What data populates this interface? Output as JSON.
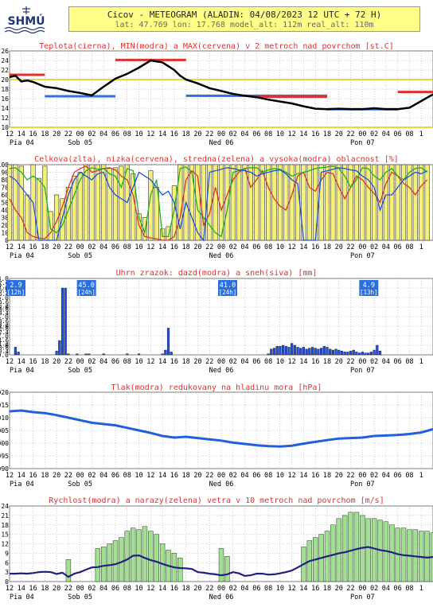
{
  "header": {
    "logo_text": "SHMÚ",
    "title": "Cicov - METEOGRAM (ALADIN: 04/08/2023 12 UTC + 72 H)",
    "subtitle": "lat: 47.769   lon: 17.768   model_alt: 112m   real_alt: 110m"
  },
  "time_axis": {
    "hour_labels": [
      "12",
      "14",
      "16",
      "18",
      "20",
      "22",
      "00",
      "02",
      "04",
      "06",
      "08",
      "10",
      "12",
      "14",
      "16",
      "18",
      "20",
      "22",
      "00",
      "02",
      "04",
      "06",
      "08",
      "10",
      "12",
      "14",
      "16",
      "18",
      "20",
      "22",
      "00",
      "02",
      "04",
      "06",
      "08",
      "1"
    ],
    "day_labels": [
      {
        "label": "Pia 04",
        "hour": 0
      },
      {
        "label": "Sob 05",
        "hour": 12
      },
      {
        "label": "Ned 06",
        "hour": 36
      },
      {
        "label": "Pon 07",
        "hour": 60
      }
    ]
  },
  "chart_data": [
    {
      "type": "line",
      "title": "Teplota(cierna), MIN(modra) a MAX(cervena) v 2 metroch nad povrchom [st.C]",
      "ylim": [
        10,
        26
      ],
      "yticks": [
        "26",
        "24",
        "22",
        "20",
        "18",
        "16",
        "14",
        "12",
        "10"
      ],
      "reference_lines": [
        {
          "value": 20,
          "color": "#d8cc00"
        },
        {
          "value": 10,
          "color": "#d8cc00"
        }
      ],
      "x": [
        0,
        1,
        2,
        3,
        4,
        6,
        8,
        10,
        12,
        14,
        16,
        18,
        20,
        22,
        24,
        26,
        28,
        29,
        30,
        32,
        34,
        36,
        38,
        40,
        42,
        44,
        46,
        48,
        50,
        52,
        54,
        56,
        58,
        60,
        62,
        64,
        66,
        68,
        70,
        72
      ],
      "series": [
        {
          "name": "Teplota",
          "color": "#000000",
          "values": [
            20.5,
            20.8,
            19.6,
            19.8,
            19.5,
            18.5,
            18.2,
            17.6,
            17.2,
            16.7,
            18.5,
            20.2,
            21.2,
            22.5,
            24.0,
            23.6,
            22.0,
            20.8,
            20.0,
            19.2,
            18.2,
            17.6,
            17.0,
            16.6,
            16.3,
            15.8,
            15.4,
            15.0,
            14.4,
            13.9,
            13.8,
            13.9,
            13.8,
            13.8,
            14.0,
            13.8,
            13.8,
            14.1,
            15.5,
            16.9
          ]
        }
      ],
      "segments": [
        {
          "kind": "MAX",
          "color": "#e03030",
          "x0": 0,
          "x1": 6,
          "value": 21.0
        },
        {
          "kind": "MIN",
          "color": "#3070e0",
          "x0": 6,
          "x1": 18,
          "value": 16.5
        },
        {
          "kind": "MAX",
          "color": "#e03030",
          "x0": 18,
          "x1": 30,
          "value": 24.1
        },
        {
          "kind": "MIN",
          "color": "#3070e0",
          "x0": 30,
          "x1": 54,
          "value": 16.6
        },
        {
          "kind": "MAX",
          "color": "#e03030",
          "x0": 42,
          "x1": 54,
          "value": 16.4
        },
        {
          "kind": "MIN",
          "color": "#3070e0",
          "x0": 54,
          "x1": 66,
          "value": 13.8
        },
        {
          "kind": "MAX",
          "color": "#e03030",
          "x0": 66,
          "x1": 72,
          "value": 17.4
        }
      ]
    },
    {
      "type": "bar",
      "title": "Celkova(zlta), nizka(cervena), stredna(zelena) a vysoka(modra) oblacnost [%]",
      "ylim": [
        0,
        100
      ],
      "yticks": [
        "100",
        "90",
        "80",
        "70",
        "60",
        "50",
        "40",
        "30",
        "20",
        "10",
        "0"
      ],
      "x_start": 0,
      "x_step": 1,
      "series": [
        {
          "name": "Celkova",
          "color": "#f5f07a",
          "values": [
            100,
            100,
            98,
            60,
            100,
            82,
            98,
            38,
            60,
            55,
            70,
            85,
            90,
            100,
            100,
            100,
            100,
            95,
            96,
            98,
            100,
            88,
            35,
            30,
            92,
            70,
            15,
            18,
            72,
            100,
            100,
            100,
            100,
            100,
            100,
            100,
            100,
            100,
            100,
            100,
            100,
            100,
            100,
            100,
            100,
            100,
            100,
            100,
            100,
            100,
            100,
            100,
            100,
            100,
            100,
            100,
            100,
            100,
            100,
            100,
            100,
            100,
            100,
            100,
            100,
            100,
            100,
            100,
            100,
            100,
            100,
            100
          ]
        },
        {
          "name": "nizka",
          "color": "#e03030",
          "values": [
            55,
            40,
            30,
            10,
            5,
            3,
            2,
            10,
            25,
            45,
            70,
            90,
            95,
            98,
            90,
            92,
            95,
            96,
            93,
            85,
            80,
            60,
            20,
            5,
            3,
            2,
            0,
            0,
            5,
            30,
            80,
            92,
            85,
            20,
            35,
            70,
            40,
            60,
            80,
            90,
            95,
            70,
            80,
            92,
            70,
            55,
            45,
            40,
            60,
            85,
            90,
            70,
            65,
            80,
            90,
            88,
            70,
            55,
            70,
            85,
            80,
            70,
            62,
            50,
            75,
            90,
            85,
            75,
            70,
            60,
            72,
            80
          ]
        },
        {
          "name": "stredna",
          "color": "#20b020",
          "values": [
            95,
            96,
            90,
            80,
            85,
            80,
            70,
            15,
            10,
            20,
            40,
            60,
            80,
            92,
            96,
            94,
            95,
            88,
            85,
            70,
            95,
            92,
            30,
            10,
            60,
            80,
            5,
            5,
            40,
            95,
            97,
            90,
            40,
            30,
            20,
            10,
            5,
            40,
            90,
            92,
            95,
            96,
            96,
            90,
            93,
            95,
            94,
            90,
            85,
            88,
            90,
            92,
            95,
            96,
            97,
            98,
            95,
            85,
            70,
            80,
            96,
            95,
            85,
            80,
            90,
            95,
            85,
            80,
            90,
            95,
            96,
            90
          ]
        },
        {
          "name": "vysoka",
          "color": "#2050e0",
          "values": [
            85,
            80,
            70,
            60,
            50,
            0,
            0,
            0,
            0,
            30,
            60,
            80,
            90,
            85,
            80,
            88,
            90,
            70,
            60,
            55,
            50,
            70,
            90,
            85,
            80,
            70,
            60,
            65,
            50,
            15,
            50,
            30,
            10,
            0,
            90,
            92,
            94,
            96,
            95,
            93,
            92,
            90,
            85,
            88,
            90,
            92,
            93,
            88,
            80,
            75,
            0,
            0,
            0,
            90,
            92,
            94,
            96,
            95,
            93,
            92,
            85,
            80,
            70,
            40,
            60,
            60,
            70,
            80,
            85,
            90,
            88,
            92
          ]
        }
      ]
    },
    {
      "type": "bar",
      "title": "Uhrn zrazok: dazd(modra) a sneh(siva) [mm]",
      "ylim": [
        0,
        8
      ],
      "yticks": [
        "8.0",
        "7.0",
        "6.0",
        "5.0",
        "4.0",
        "3.0",
        "2.0",
        "1.0",
        "0.0"
      ],
      "yticks_extra": [
        "7.6",
        "7.2",
        "6.8",
        "6.4",
        "5.6",
        "5.2",
        "4.8",
        "4.4",
        "3.6",
        "3.2",
        "2.8",
        "2.4",
        "1.6",
        "1.2",
        "0.8",
        "0.4"
      ],
      "x_start": 0,
      "x_step": 1,
      "series": [
        {
          "name": "dazd",
          "color": "#2050e0",
          "values": [
            0,
            0,
            0.8,
            0.3,
            0,
            0,
            0,
            0,
            0,
            0,
            0,
            0,
            0,
            0,
            0,
            0,
            0.4,
            1.5,
            7.0,
            7.0,
            0.1,
            0,
            0,
            0.1,
            0,
            0,
            0.1,
            0.1,
            0,
            0,
            0,
            0,
            0.1,
            0,
            0,
            0,
            0,
            0,
            0,
            0,
            0.1,
            0,
            0,
            0,
            0.1,
            0,
            0,
            0,
            0,
            0,
            0,
            0,
            0.1,
            0.5,
            2.8,
            0.3,
            0,
            0,
            0,
            0,
            0,
            0,
            0,
            0,
            0,
            0,
            0,
            0,
            0,
            0,
            0,
            0,
            0,
            0,
            0,
            0,
            0,
            0,
            0,
            0,
            0,
            0,
            0,
            0,
            0,
            0,
            0,
            0,
            0.1,
            0.6,
            0.7,
            0.9,
            0.9,
            1.0,
            0.9,
            0.8,
            1.2,
            1.0,
            0.8,
            0.7,
            0.8,
            0.6,
            0.7,
            0.8,
            0.7,
            0.6,
            0.7,
            0.9,
            0.8,
            0.6,
            0.5,
            0.6,
            0.5,
            0.4,
            0.3,
            0.3,
            0.4,
            0.5,
            0.3,
            0.2,
            0.3,
            0.2,
            0.2,
            0.3,
            0.5,
            1.0,
            0.4,
            0,
            0,
            0,
            0,
            0,
            0,
            0,
            0,
            0,
            0,
            0,
            0,
            0,
            0
          ]
        }
      ],
      "period_labels": [
        {
          "amount": "2.9",
          "period": "[12h]",
          "x": 0
        },
        {
          "amount": "45.0",
          "period": "[24h]",
          "x": 12
        },
        {
          "amount": "41.0",
          "period": "[24h]",
          "x": 36
        },
        {
          "amount": "4.9",
          "period": "[13h]",
          "x": 60
        }
      ]
    },
    {
      "type": "line",
      "title": "Tlak(modra) redukovany na hladinu mora [hPa]",
      "ylim": [
        990,
        1020
      ],
      "yticks": [
        "1020",
        "1015",
        "1010",
        "1005",
        "1000",
        "995",
        "990"
      ],
      "x": [
        0,
        2,
        4,
        6,
        8,
        10,
        12,
        13,
        14,
        16,
        18,
        20,
        22,
        24,
        26,
        28,
        30,
        32,
        34,
        36,
        38,
        40,
        42,
        44,
        46,
        48,
        50,
        52,
        54,
        56,
        58,
        60,
        62,
        64,
        66,
        68,
        70,
        72
      ],
      "series": [
        {
          "name": "Tlak",
          "color": "#2060e0",
          "values": [
            1012.5,
            1012.8,
            1012.2,
            1011.8,
            1011.0,
            1010.0,
            1009.0,
            1008.5,
            1008.0,
            1007.5,
            1007.0,
            1006.0,
            1005.0,
            1004.0,
            1002.8,
            1002.2,
            1002.5,
            1002.0,
            1001.5,
            1001.0,
            1000.2,
            999.7,
            999.2,
            998.8,
            998.7,
            999.0,
            999.8,
            1000.5,
            1001.2,
            1001.8,
            1002.0,
            1002.2,
            1002.8,
            1003.0,
            1003.2,
            1003.6,
            1004.2,
            1005.5
          ]
        }
      ]
    },
    {
      "type": "bar",
      "title": "Rychlost(modra) a narazy(zelena) vetra v 10 metroch nad povrchom [m/s]",
      "ylim": [
        0,
        24
      ],
      "yticks": [
        "24",
        "21",
        "18",
        "15",
        "12",
        "9",
        "6",
        "3",
        "0"
      ],
      "x_start": 0,
      "x_step": 1,
      "series": [
        {
          "name": "narazy",
          "color": "#a0e090",
          "values": [
            0,
            0,
            0,
            0,
            0,
            0,
            0,
            0,
            0,
            0,
            7,
            0,
            0,
            0,
            0,
            10.5,
            11,
            12,
            13,
            14,
            16,
            17,
            16.5,
            17.5,
            16,
            15,
            12,
            10,
            9,
            7.5,
            0,
            0,
            0,
            0,
            0,
            0,
            10.5,
            8,
            0,
            0,
            0,
            0,
            0,
            0,
            0,
            0,
            0,
            0,
            0,
            0,
            11,
            13,
            14,
            15,
            16,
            18,
            20,
            21,
            22,
            22,
            21,
            20,
            20,
            19.5,
            19,
            18,
            17,
            17,
            16.5,
            16.5,
            16,
            16,
            15.5,
            15,
            14.5,
            14
          ]
        },
        {
          "name": "Rychlost",
          "color": "#202080",
          "values": [
            2.5,
            2.5,
            2.6,
            2.5,
            2.7,
            3.0,
            3.1,
            3.0,
            2.4,
            2.8,
            1.5,
            2.5,
            3.0,
            3.8,
            4.5,
            4.6,
            5.0,
            5.2,
            5.5,
            6.2,
            7.0,
            8.2,
            8.3,
            7.5,
            6.8,
            6.3,
            5.6,
            5.0,
            4.5,
            4.3,
            4.2,
            4.0,
            3.0,
            2.8,
            2.5,
            2.3,
            2.0,
            2.3,
            3.0,
            2.6,
            1.8,
            2.0,
            2.5,
            2.5,
            2.2,
            2.3,
            2.6,
            3.0,
            3.5,
            4.5,
            5.5,
            6.5,
            7.0,
            7.5,
            8.0,
            8.5,
            9.0,
            9.3,
            9.8,
            10.3,
            10.7,
            11.0,
            10.5,
            10.0,
            9.7,
            9.3,
            8.7,
            8.4,
            8.2,
            8.0,
            7.8,
            7.6,
            7.8,
            7.8,
            7.6,
            7.5
          ]
        }
      ]
    }
  ]
}
